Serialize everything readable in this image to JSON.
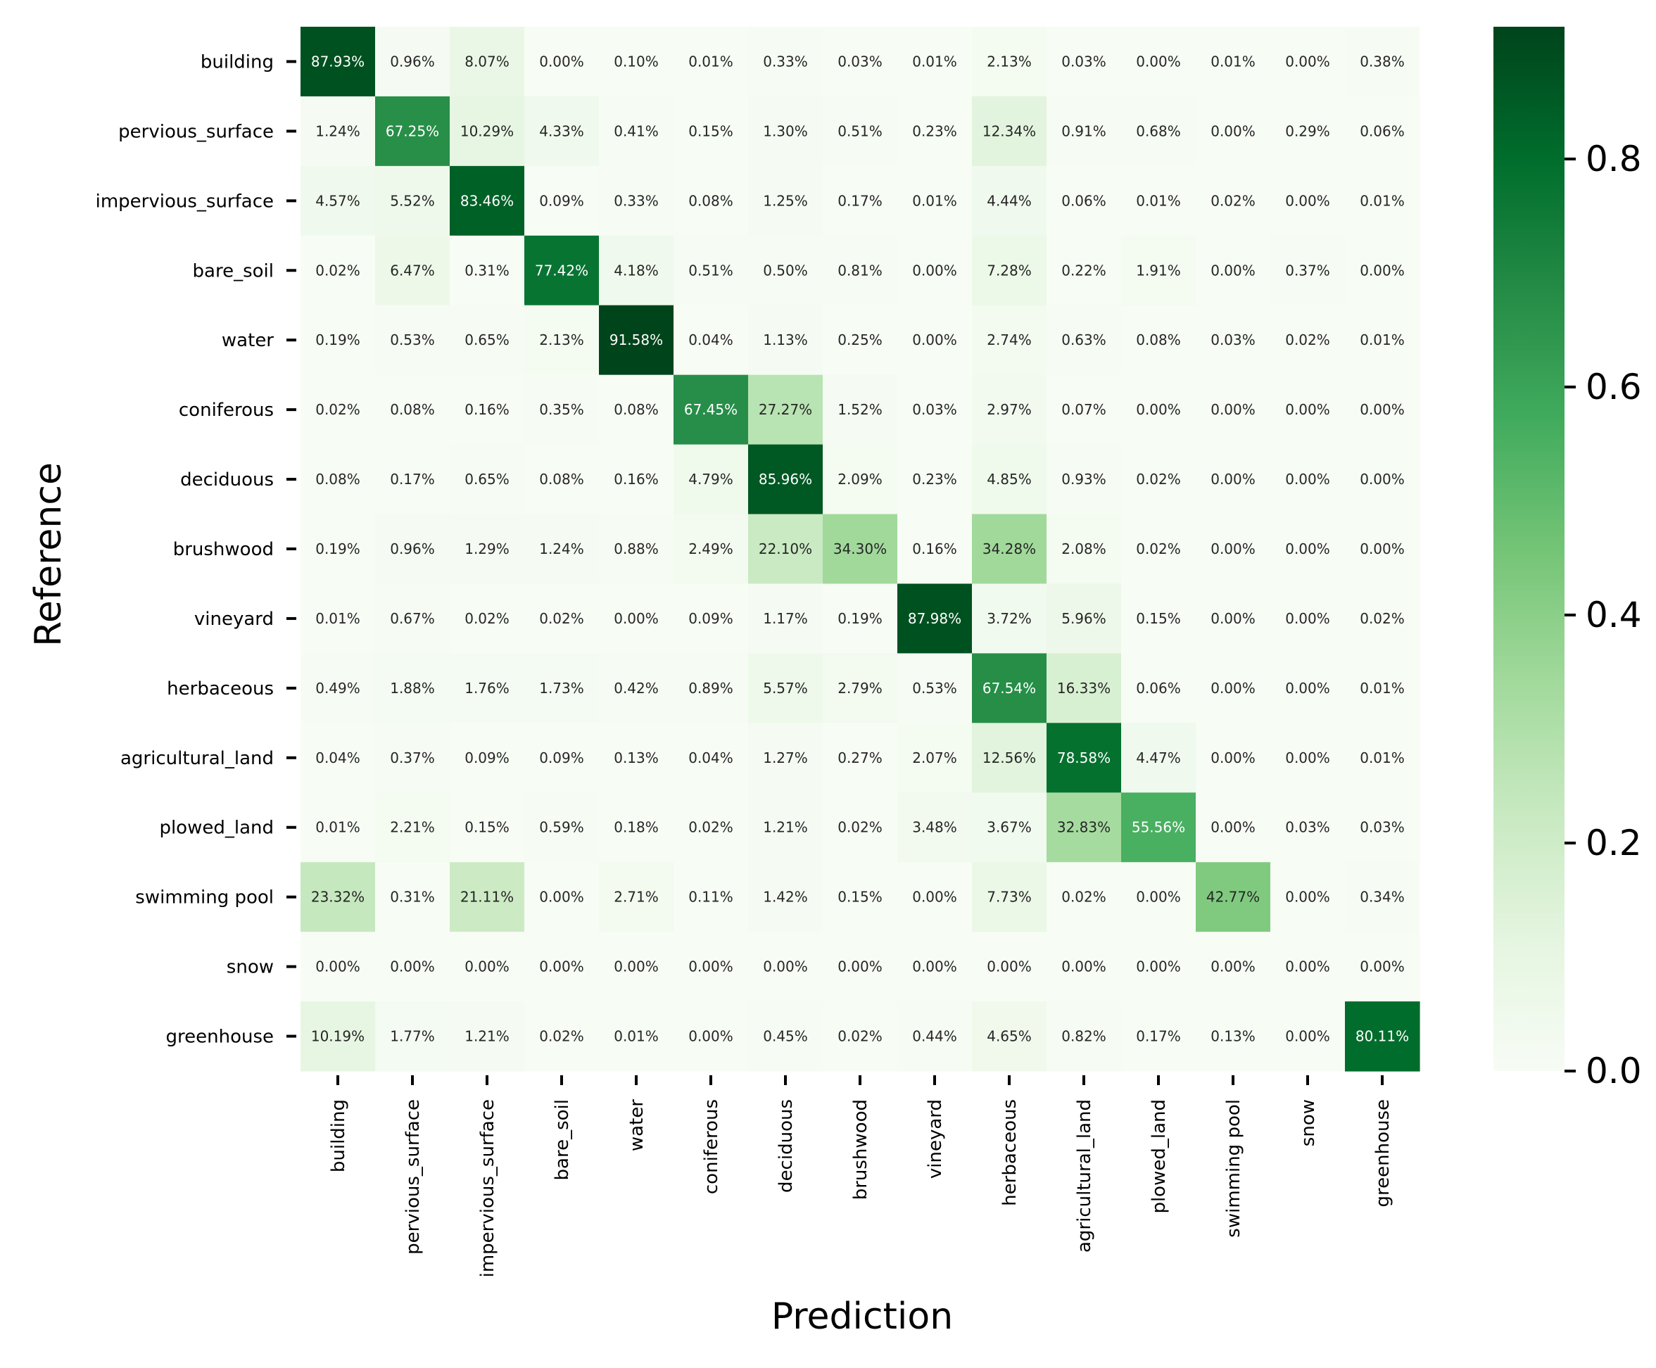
{
  "chart_data": {
    "type": "heatmap",
    "title": "",
    "xlabel": "Prediction",
    "ylabel": "Reference",
    "value_format": "percent_2dp",
    "colormap": "Greens",
    "color_range": [
      0,
      0.916
    ],
    "colorbar_ticks": [
      "0.0",
      "0.2",
      "0.4",
      "0.6",
      "0.8"
    ],
    "colorbar_tick_values": [
      0.0,
      0.2,
      0.4,
      0.6,
      0.8
    ],
    "row_labels": [
      "building",
      "pervious_surface",
      "impervious_surface",
      "bare_soil",
      "water",
      "coniferous",
      "deciduous",
      "brushwood",
      "vineyard",
      "herbaceous",
      "agricultural_land",
      "plowed_land",
      "swimming pool",
      "snow",
      "greenhouse"
    ],
    "col_labels": [
      "building",
      "pervious_surface",
      "impervious_surface",
      "bare_soil",
      "water",
      "coniferous",
      "deciduous",
      "brushwood",
      "vineyard",
      "herbaceous",
      "agricultural_land",
      "plowed_land",
      "swimming pool",
      "snow",
      "greenhouse"
    ],
    "values": [
      [
        "87.93%",
        "0.96%",
        "8.07%",
        "0.00%",
        "0.10%",
        "0.01%",
        "0.33%",
        "0.03%",
        "0.01%",
        "2.13%",
        "0.03%",
        "0.00%",
        "0.01%",
        "0.00%",
        "0.38%"
      ],
      [
        "1.24%",
        "67.25%",
        "10.29%",
        "4.33%",
        "0.41%",
        "0.15%",
        "1.30%",
        "0.51%",
        "0.23%",
        "12.34%",
        "0.91%",
        "0.68%",
        "0.00%",
        "0.29%",
        "0.06%"
      ],
      [
        "4.57%",
        "5.52%",
        "83.46%",
        "0.09%",
        "0.33%",
        "0.08%",
        "1.25%",
        "0.17%",
        "0.01%",
        "4.44%",
        "0.06%",
        "0.01%",
        "0.02%",
        "0.00%",
        "0.01%"
      ],
      [
        "0.02%",
        "6.47%",
        "0.31%",
        "77.42%",
        "4.18%",
        "0.51%",
        "0.50%",
        "0.81%",
        "0.00%",
        "7.28%",
        "0.22%",
        "1.91%",
        "0.00%",
        "0.37%",
        "0.00%"
      ],
      [
        "0.19%",
        "0.53%",
        "0.65%",
        "2.13%",
        "91.58%",
        "0.04%",
        "1.13%",
        "0.25%",
        "0.00%",
        "2.74%",
        "0.63%",
        "0.08%",
        "0.03%",
        "0.02%",
        "0.01%"
      ],
      [
        "0.02%",
        "0.08%",
        "0.16%",
        "0.35%",
        "0.08%",
        "67.45%",
        "27.27%",
        "1.52%",
        "0.03%",
        "2.97%",
        "0.07%",
        "0.00%",
        "0.00%",
        "0.00%",
        "0.00%"
      ],
      [
        "0.08%",
        "0.17%",
        "0.65%",
        "0.08%",
        "0.16%",
        "4.79%",
        "85.96%",
        "2.09%",
        "0.23%",
        "4.85%",
        "0.93%",
        "0.02%",
        "0.00%",
        "0.00%",
        "0.00%"
      ],
      [
        "0.19%",
        "0.96%",
        "1.29%",
        "1.24%",
        "0.88%",
        "2.49%",
        "22.10%",
        "34.30%",
        "0.16%",
        "34.28%",
        "2.08%",
        "0.02%",
        "0.00%",
        "0.00%",
        "0.00%"
      ],
      [
        "0.01%",
        "0.67%",
        "0.02%",
        "0.02%",
        "0.00%",
        "0.09%",
        "1.17%",
        "0.19%",
        "87.98%",
        "3.72%",
        "5.96%",
        "0.15%",
        "0.00%",
        "0.00%",
        "0.02%"
      ],
      [
        "0.49%",
        "1.88%",
        "1.76%",
        "1.73%",
        "0.42%",
        "0.89%",
        "5.57%",
        "2.79%",
        "0.53%",
        "67.54%",
        "16.33%",
        "0.06%",
        "0.00%",
        "0.00%",
        "0.01%"
      ],
      [
        "0.04%",
        "0.37%",
        "0.09%",
        "0.09%",
        "0.13%",
        "0.04%",
        "1.27%",
        "0.27%",
        "2.07%",
        "12.56%",
        "78.58%",
        "4.47%",
        "0.00%",
        "0.00%",
        "0.01%"
      ],
      [
        "0.01%",
        "2.21%",
        "0.15%",
        "0.59%",
        "0.18%",
        "0.02%",
        "1.21%",
        "0.02%",
        "3.48%",
        "3.67%",
        "32.83%",
        "55.56%",
        "0.00%",
        "0.03%",
        "0.03%"
      ],
      [
        "23.32%",
        "0.31%",
        "21.11%",
        "0.00%",
        "2.71%",
        "0.11%",
        "1.42%",
        "0.15%",
        "0.00%",
        "7.73%",
        "0.02%",
        "0.00%",
        "42.77%",
        "0.00%",
        "0.34%"
      ],
      [
        "0.00%",
        "0.00%",
        "0.00%",
        "0.00%",
        "0.00%",
        "0.00%",
        "0.00%",
        "0.00%",
        "0.00%",
        "0.00%",
        "0.00%",
        "0.00%",
        "0.00%",
        "0.00%",
        "0.00%"
      ],
      [
        "10.19%",
        "1.77%",
        "1.21%",
        "0.02%",
        "0.01%",
        "0.00%",
        "0.45%",
        "0.02%",
        "0.44%",
        "4.65%",
        "0.82%",
        "0.17%",
        "0.13%",
        "0.00%",
        "80.11%"
      ]
    ]
  }
}
